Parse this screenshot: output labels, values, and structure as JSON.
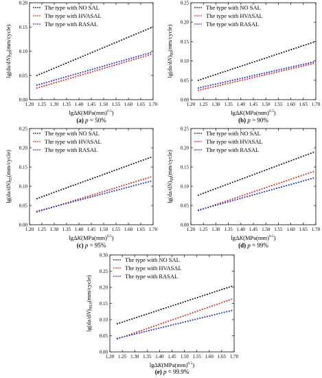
{
  "figure": {
    "legend_labels": [
      "The type with NO SAL",
      "The type with HVASAL",
      "The type with RASAL"
    ],
    "colors": {
      "no_sal": "#111111",
      "hvasal": "#e8231f",
      "rasal": "#1f2fe0"
    }
  },
  "chart_data": [
    {
      "type": "scatter",
      "panel_letter": "(a)",
      "caption_p": "p = 50%",
      "ylabel_sub": "50",
      "xlabel": "lgΔK(MPa(mm)^0.5)",
      "ylabel": "lg(da/dN)50(mm/cycle)",
      "xlim": [
        1.2,
        1.7
      ],
      "ylim": [
        0,
        0.2
      ],
      "xticks": [
        1.2,
        1.25,
        1.3,
        1.35,
        1.4,
        1.45,
        1.5,
        1.55,
        1.6,
        1.65,
        1.7
      ],
      "xtick_labels": [
        "1.20",
        "1.25",
        "1.30",
        "1.35",
        "1.40",
        "1.45",
        "1.50",
        "1.55",
        "1.60",
        "1.65",
        "1.70"
      ],
      "yticks": [
        0.0,
        0.05,
        0.1,
        0.15,
        0.2
      ],
      "ytick_labels": [
        "0.00",
        "0.05",
        "0.10",
        "0.15",
        "0.20"
      ],
      "x_range": [
        1.23,
        1.69
      ],
      "series": [
        {
          "name": "The type with NO SAL",
          "y_start": 0.05,
          "y_end": 0.148
        },
        {
          "name": "The type with HVASAL",
          "y_start": 0.024,
          "y_end": 0.093
        },
        {
          "name": "The type with RASAL",
          "y_start": 0.03,
          "y_end": 0.097
        }
      ]
    },
    {
      "type": "scatter",
      "panel_letter": "(b)",
      "caption_p": "p = 90%",
      "ylabel_sub": "90",
      "xlabel": "lgΔK(MPa(mm)^0.5)",
      "ylabel": "lg(da/dN)90(mm/cycle)",
      "xlim": [
        1.2,
        1.7
      ],
      "ylim": [
        0,
        0.25
      ],
      "xticks": [
        1.2,
        1.25,
        1.3,
        1.35,
        1.4,
        1.45,
        1.5,
        1.55,
        1.6,
        1.65,
        1.7
      ],
      "xtick_labels": [
        "1.20",
        "1.25",
        "1.30",
        "1.35",
        "1.40",
        "1.45",
        "1.50",
        "1.55",
        "1.60",
        "1.65",
        "1.70"
      ],
      "yticks": [
        0.0,
        0.05,
        0.1,
        0.15,
        0.2,
        0.25
      ],
      "ytick_labels": [
        "0.00",
        "0.05",
        "0.10",
        "0.15",
        "0.20",
        "0.25"
      ],
      "x_range": [
        1.23,
        1.69
      ],
      "series": [
        {
          "name": "The type with NO SAL",
          "y_start": 0.05,
          "y_end": 0.148
        },
        {
          "name": "The type with HVASAL",
          "y_start": 0.024,
          "y_end": 0.093
        },
        {
          "name": "The type with RASAL",
          "y_start": 0.03,
          "y_end": 0.097
        }
      ]
    },
    {
      "type": "scatter",
      "panel_letter": "(c)",
      "caption_p": "p = 95%",
      "ylabel_sub": "95",
      "xlabel": "lgΔK(MPa(mm)^0.5)",
      "ylabel": "lg(da/dN)95(mm/cycle)",
      "xlim": [
        1.2,
        1.7
      ],
      "ylim": [
        0,
        0.25
      ],
      "xticks": [
        1.2,
        1.25,
        1.3,
        1.35,
        1.4,
        1.45,
        1.5,
        1.55,
        1.6,
        1.65,
        1.7
      ],
      "xtick_labels": [
        "1.20",
        "1.25",
        "1.30",
        "1.35",
        "1.40",
        "1.45",
        "1.50",
        "1.55",
        "1.60",
        "1.65",
        "1.70"
      ],
      "yticks": [
        0.0,
        0.05,
        0.1,
        0.15,
        0.2,
        0.25
      ],
      "ytick_labels": [
        "0.00",
        "0.05",
        "0.10",
        "0.15",
        "0.20",
        "0.25"
      ],
      "x_range": [
        1.23,
        1.69
      ],
      "series": [
        {
          "name": "The type with NO SAL",
          "y_start": 0.068,
          "y_end": 0.175
        },
        {
          "name": "The type with HVASAL",
          "y_start": 0.033,
          "y_end": 0.124
        },
        {
          "name": "The type with RASAL",
          "y_start": 0.035,
          "y_end": 0.113
        }
      ]
    },
    {
      "type": "scatter",
      "panel_letter": "(d)",
      "caption_p": "p = 99%",
      "ylabel_sub": "99",
      "xlabel": "lgΔK(MPa(mm)^0.5)",
      "ylabel": "lg(da/dN)99(mm/cycle)",
      "xlim": [
        1.2,
        1.7
      ],
      "ylim": [
        0,
        0.25
      ],
      "xticks": [
        1.2,
        1.25,
        1.3,
        1.35,
        1.4,
        1.45,
        1.5,
        1.55,
        1.6,
        1.65,
        1.7
      ],
      "xtick_labels": [
        "1.20",
        "1.25",
        "1.30",
        "1.35",
        "1.40",
        "1.45",
        "1.50",
        "1.55",
        "1.60",
        "1.65",
        "1.70"
      ],
      "yticks": [
        0.0,
        0.05,
        0.1,
        0.15,
        0.2,
        0.25
      ],
      "ytick_labels": [
        "0.00",
        "0.05",
        "0.10",
        "0.15",
        "0.20",
        "0.25"
      ],
      "x_range": [
        1.23,
        1.69
      ],
      "series": [
        {
          "name": "The type with NO SAL",
          "y_start": 0.077,
          "y_end": 0.188
        },
        {
          "name": "The type with HVASAL",
          "y_start": 0.037,
          "y_end": 0.138
        },
        {
          "name": "The type with RASAL",
          "y_start": 0.038,
          "y_end": 0.121
        }
      ]
    },
    {
      "type": "scatter",
      "panel_letter": "(e)",
      "caption_p": "p = 99.9%",
      "ylabel_sub": "99.9",
      "xlabel": "lgΔK(MPa(mm)^0.5)",
      "ylabel": "lg(da/dN)99.9(mm/cycle)",
      "xlim": [
        1.2,
        1.7
      ],
      "ylim": [
        0,
        0.3
      ],
      "xticks": [
        1.2,
        1.25,
        1.3,
        1.35,
        1.4,
        1.45,
        1.5,
        1.55,
        1.6,
        1.65,
        1.7
      ],
      "xtick_labels": [
        "1.20",
        "1.25",
        "1.30",
        "1.35",
        "1.40",
        "1.45",
        "1.50",
        "1.55",
        "1.60",
        "1.65",
        "1.70"
      ],
      "yticks": [
        0.0,
        0.05,
        0.1,
        0.15,
        0.2,
        0.25,
        0.3
      ],
      "ytick_labels": [
        "0.00",
        "0.05",
        "0.10",
        "0.15",
        "0.20",
        "0.25",
        "0.30"
      ],
      "x_range": [
        1.23,
        1.69
      ],
      "series": [
        {
          "name": "The type with NO SAL",
          "y_start": 0.087,
          "y_end": 0.203
        },
        {
          "name": "The type with HVASAL",
          "y_start": 0.04,
          "y_end": 0.163
        },
        {
          "name": "The type with RASAL",
          "y_start": 0.042,
          "y_end": 0.128
        }
      ]
    }
  ]
}
